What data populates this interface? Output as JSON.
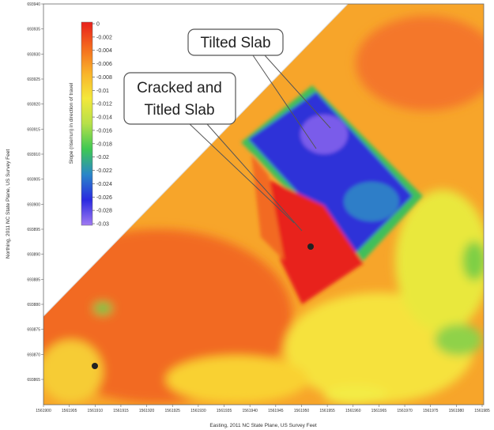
{
  "chart_data": {
    "type": "heatmap",
    "x_label": "Easting, 2011 NC State Plane, US Survey Feet",
    "y_label": "Northing, 2011 NC State Plane, US Survey Feet",
    "xlim": [
      1561900,
      1561985
    ],
    "xticks": [
      1561900,
      1561905,
      1561910,
      1561915,
      1561920,
      1561925,
      1561930,
      1561935,
      1561940,
      1561945,
      1561950,
      1561955,
      1561960,
      1561965,
      1561970,
      1561975,
      1561980,
      1561985
    ],
    "ylim": [
      693860,
      693940
    ],
    "yticks": [
      693865,
      693870,
      693875,
      693880,
      693885,
      693890,
      693895,
      693900,
      693905,
      693910,
      693915,
      693920,
      693925,
      693930,
      693935,
      693940
    ],
    "colorbar": {
      "label": "Slope (rise/run) in direction of travel",
      "clim": [
        -0.03,
        0
      ],
      "ticks": [
        0,
        -0.002,
        -0.004,
        -0.006,
        -0.008,
        -0.01,
        -0.012,
        -0.014,
        -0.016,
        -0.018,
        -0.02,
        -0.022,
        -0.024,
        -0.026,
        -0.028,
        -0.03
      ],
      "colors": [
        "#e8201c",
        "#f46a1e",
        "#f9b22a",
        "#f4e83a",
        "#b6e04a",
        "#3ec853",
        "#2a86c8",
        "#2a2ae0",
        "#a07af2"
      ]
    },
    "annotations": [
      {
        "lines": [
          "Tilted Slab"
        ]
      },
      {
        "lines": [
          "Cracked and",
          "Titled Slab"
        ]
      }
    ]
  }
}
